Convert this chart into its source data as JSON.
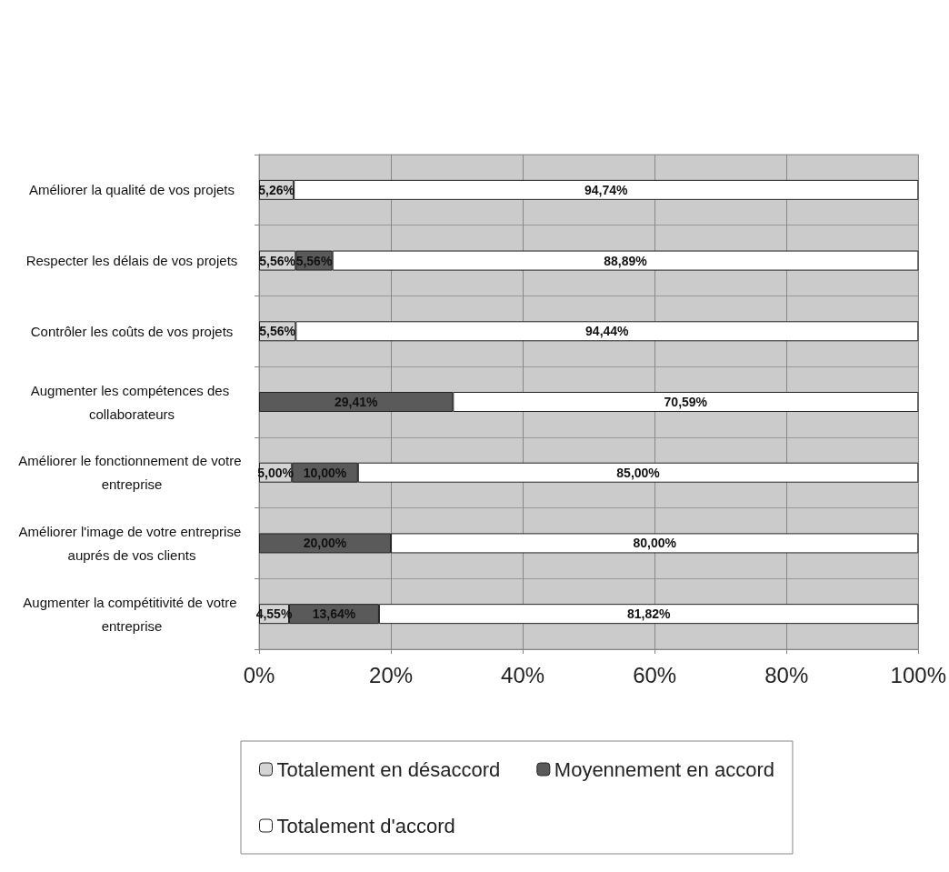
{
  "chart_data": {
    "type": "bar",
    "orientation": "horizontal",
    "stacked": true,
    "categories": [
      "Améliorer la qualité de vos projets",
      "Respecter les délais de vos projets",
      "Contrôler les coûts de vos projets",
      "Augmenter les compétences des collaborateurs",
      "Améliorer le fonctionnement de votre entreprise",
      "Améliorer l'image de votre entreprise auprés de vos clients",
      "Augmenter la compétitivité de votre entreprise"
    ],
    "series": [
      {
        "name": "Totalement en désaccord",
        "color": "#d4d4d4",
        "values": [
          5.26,
          5.56,
          5.56,
          null,
          5.0,
          null,
          4.55
        ],
        "value_labels": [
          "5,26%",
          "5,56%",
          "5,56%",
          null,
          "5,00%",
          null,
          "4,55%"
        ]
      },
      {
        "name": "Moyennement en accord",
        "color": "#5a5a5a",
        "values": [
          null,
          5.56,
          null,
          29.41,
          10.0,
          20.0,
          13.64
        ],
        "value_labels": [
          null,
          "5,56%",
          null,
          "29,41%",
          "10,00%",
          "20,00%",
          "13,64%"
        ]
      },
      {
        "name": "Totalement d'accord",
        "color": "#ffffff",
        "values": [
          94.74,
          88.89,
          94.44,
          70.59,
          85.0,
          80.0,
          81.82
        ],
        "value_labels": [
          "94,74%",
          "88,89%",
          "94,44%",
          "70,59%",
          "85,00%",
          "80,00%",
          "81,82%"
        ]
      }
    ],
    "xlim": [
      0,
      100
    ],
    "xticks": [
      {
        "value": 0,
        "label": "0%"
      },
      {
        "value": 20,
        "label": "20%"
      },
      {
        "value": 40,
        "label": "40%"
      },
      {
        "value": 60,
        "label": "60%"
      },
      {
        "value": 80,
        "label": "80%"
      },
      {
        "value": 100,
        "label": "100%"
      }
    ],
    "grid": "x",
    "legend": "bottom"
  }
}
